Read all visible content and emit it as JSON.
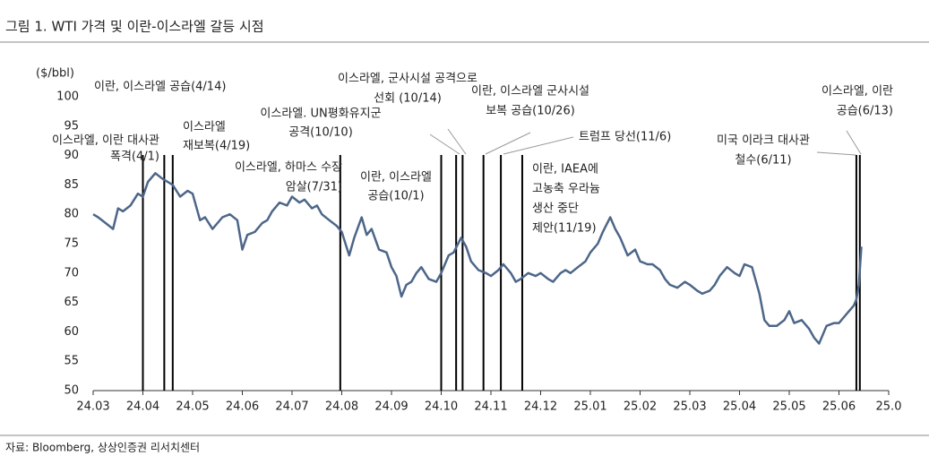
{
  "chart_data": {
    "type": "line",
    "title": "그림 1. WTI 가격 및 이란-이스라엘 갈등 시점",
    "y_label": "($/bbl)",
    "source": "자료: Bloomberg, 상상인증권 리서치센터",
    "xlim": [
      0,
      16
    ],
    "xticks": [
      {
        "value": 0,
        "label": "24.03"
      },
      {
        "value": 1,
        "label": "24.04"
      },
      {
        "value": 2,
        "label": "24.05"
      },
      {
        "value": 3,
        "label": "24.06"
      },
      {
        "value": 4,
        "label": "24.07"
      },
      {
        "value": 5,
        "label": "24.08"
      },
      {
        "value": 6,
        "label": "24.09"
      },
      {
        "value": 7,
        "label": "24.10"
      },
      {
        "value": 8,
        "label": "24.11"
      },
      {
        "value": 9,
        "label": "24.12"
      },
      {
        "value": 10,
        "label": "25.01"
      },
      {
        "value": 11,
        "label": "25.02"
      },
      {
        "value": 12,
        "label": "25.03"
      },
      {
        "value": 13,
        "label": "25.04"
      },
      {
        "value": 14,
        "label": "25.05"
      },
      {
        "value": 15,
        "label": "25.06"
      },
      {
        "value": 16,
        "label": "25.0"
      }
    ],
    "ylim": [
      50,
      100
    ],
    "yticks": [
      50,
      55,
      60,
      65,
      70,
      75,
      80,
      85,
      90,
      95,
      100
    ],
    "series": [
      {
        "name": "WTI",
        "color": "#4d6688",
        "x": [
          0,
          0.1,
          0.25,
          0.4,
          0.5,
          0.6,
          0.75,
          0.9,
          1.0,
          1.1,
          1.25,
          1.4,
          1.5,
          1.6,
          1.75,
          1.9,
          2.0,
          2.15,
          2.25,
          2.4,
          2.5,
          2.6,
          2.75,
          2.9,
          3.0,
          3.1,
          3.25,
          3.4,
          3.5,
          3.6,
          3.75,
          3.9,
          4.0,
          4.15,
          4.25,
          4.4,
          4.5,
          4.6,
          4.75,
          4.9,
          5.0,
          5.15,
          5.25,
          5.4,
          5.5,
          5.6,
          5.75,
          5.9,
          6.0,
          6.1,
          6.2,
          6.3,
          6.4,
          6.5,
          6.6,
          6.75,
          6.9,
          7.0,
          7.15,
          7.25,
          7.4,
          7.5,
          7.6,
          7.75,
          7.9,
          8.0,
          8.15,
          8.25,
          8.4,
          8.5,
          8.6,
          8.75,
          8.9,
          9.0,
          9.15,
          9.25,
          9.4,
          9.5,
          9.6,
          9.75,
          9.9,
          10.0,
          10.15,
          10.25,
          10.4,
          10.5,
          10.6,
          10.75,
          10.9,
          11.0,
          11.15,
          11.25,
          11.4,
          11.5,
          11.6,
          11.75,
          11.9,
          12.0,
          12.15,
          12.25,
          12.4,
          12.5,
          12.6,
          12.75,
          12.9,
          13.0,
          13.1,
          13.25,
          13.4,
          13.5,
          13.6,
          13.75,
          13.9,
          14.0,
          14.1,
          14.25,
          14.4,
          14.5,
          14.6,
          14.75,
          14.9,
          15.0,
          15.1,
          15.2,
          15.3,
          15.35,
          15.4,
          15.45
        ],
        "values": [
          80,
          79.5,
          78.5,
          77.5,
          81,
          80.5,
          81.5,
          83.5,
          83,
          85.5,
          87,
          86,
          85.5,
          85,
          83,
          84,
          83.5,
          79,
          79.5,
          77.5,
          78.5,
          79.5,
          80,
          79,
          74,
          76.5,
          77,
          78.5,
          79,
          80.5,
          82,
          81.5,
          83,
          82,
          82.5,
          81,
          81.5,
          80,
          79,
          78,
          77,
          73,
          76,
          79.5,
          76.5,
          77.5,
          74,
          73.5,
          71,
          69.5,
          66,
          68,
          68.5,
          70,
          71,
          69,
          68.5,
          70,
          73,
          73.5,
          76,
          74.5,
          72,
          70.5,
          70,
          69.5,
          70.5,
          71.5,
          70,
          68.5,
          69,
          70,
          69.5,
          70,
          69,
          68.5,
          70,
          70.5,
          70,
          71,
          72,
          73.5,
          75,
          77,
          79.5,
          77.5,
          76,
          73,
          74,
          72,
          71.5,
          71.5,
          70.5,
          69,
          68,
          67.5,
          68.5,
          68,
          67,
          66.5,
          67,
          68,
          69.5,
          71,
          70,
          69.5,
          71.5,
          71,
          66.5,
          62,
          61,
          61,
          62,
          63.5,
          61.5,
          62,
          60.5,
          59,
          58,
          61,
          61.5,
          61.5,
          62.5,
          63.5,
          64.5,
          65.5,
          68,
          74.5
        ]
      }
    ],
    "events": [
      {
        "x": 1.0,
        "label": [
          "이스라엘, 이란 대사관",
          "폭격(4/1)"
        ]
      },
      {
        "x": 1.43,
        "label": [
          "이란, 이스라엘 공습(4/14)"
        ]
      },
      {
        "x": 1.6,
        "label": [
          "이스라엘",
          "재보복(4/19)"
        ]
      },
      {
        "x": 4.97,
        "label": [
          "이스라엘, 하마스 수장",
          "암살(7/31)"
        ]
      },
      {
        "x": 7.0,
        "label": [
          "이란, 이스라엘",
          "공습(10/1)"
        ]
      },
      {
        "x": 7.3,
        "label": [
          "이스라엘. UN평화유지군",
          "공격(10/10)"
        ]
      },
      {
        "x": 7.43,
        "label": [
          "이스라엘, 군사시설 공격으로",
          "선회 (10/14)"
        ]
      },
      {
        "x": 7.85,
        "label": [
          "이란, 이스라엘 군사시설",
          "보복 공습(10/26)"
        ]
      },
      {
        "x": 8.2,
        "label": [
          "트럼프 당선(11/6)"
        ]
      },
      {
        "x": 8.63,
        "label": [
          "이란, IAEA에",
          "고농축 우라늄",
          "생산 중단",
          "제안(11/19)"
        ]
      },
      {
        "x": 15.35,
        "label": [
          "미국 이라크 대사관",
          "철수(6/11)"
        ]
      },
      {
        "x": 15.42,
        "label": [
          "이스라엘, 이란",
          "공습(6/13)"
        ]
      }
    ]
  }
}
